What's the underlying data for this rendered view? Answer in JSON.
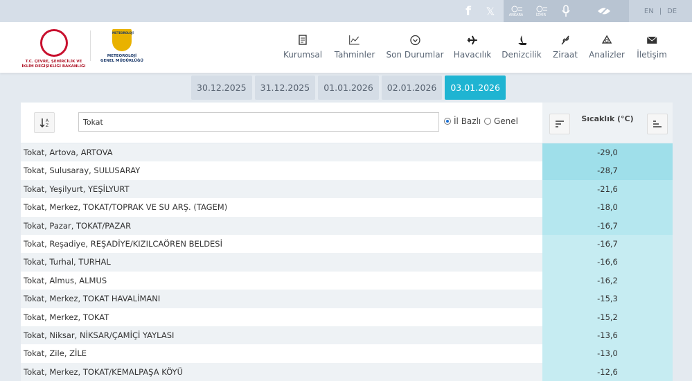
{
  "topbar": {
    "weather_links": [
      "ANKARA",
      "İZMİR"
    ],
    "languages": [
      "EN",
      "|",
      "DE"
    ]
  },
  "header": {
    "ministry_logo_text": [
      "T.C. ÇEVRE, ŞEHİRCİLİK VE",
      "İKLİM DEĞİŞİKLİĞİ BAKANLIĞI"
    ],
    "mgm_logo_top": "METEOROLOJİ",
    "mgm_logo_text": [
      "METEOROLOJİ",
      "GENEL MÜDÜRLÜĞÜ"
    ],
    "nav": [
      "Kurumsal",
      "Tahminler",
      "Son Durumlar",
      "Havacılık",
      "Denizcilik",
      "Ziraat",
      "Analizler",
      "İletişim"
    ]
  },
  "dates": {
    "items": [
      "30.12.2025",
      "31.12.2025",
      "01.01.2026",
      "02.01.2026",
      "03.01.2026"
    ],
    "active": 4
  },
  "filter": {
    "search": "Tokat",
    "options": [
      "İl Bazlı",
      "Genel"
    ],
    "selected": 0,
    "column_header": "Sıcaklık (°C)"
  },
  "table": {
    "rows": [
      [
        "Tokat, Artova, ARTOVA",
        "-29,0"
      ],
      [
        "Tokat, Sulusaray, SULUSARAY",
        "-28,7"
      ],
      [
        "Tokat, Yeşilyurt, YEŞİLYURT",
        "-21,6"
      ],
      [
        "Tokat, Merkez, TOKAT/TOPRAK VE SU ARŞ. (TAGEM)",
        "-18,0"
      ],
      [
        "Tokat, Pazar, TOKAT/PAZAR",
        "-16,7"
      ],
      [
        "Tokat, Reşadiye, REŞADİYE/KIZILCAÖREN BELDESİ",
        "-16,7"
      ],
      [
        "Tokat, Turhal, TURHAL",
        "-16,6"
      ],
      [
        "Tokat, Almus, ALMUS",
        "-16,2"
      ],
      [
        "Tokat, Merkez, TOKAT HAVALİMANI",
        "-15,3"
      ],
      [
        "Tokat, Merkez, TOKAT",
        "-15,2"
      ],
      [
        "Tokat, Niksar, NİKSAR/ÇAMİÇİ YAYLASI",
        "-13,6"
      ],
      [
        "Tokat, Zile, ZİLE",
        "-13,0"
      ],
      [
        "Tokat, Merkez, TOKAT/KEMALPAŞA KÖYÜ",
        "-12,6"
      ]
    ]
  }
}
